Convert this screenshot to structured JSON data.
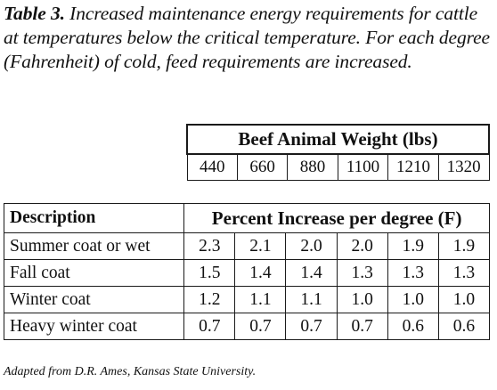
{
  "caption": {
    "lead": "Table 3.",
    "text": " Increased maintenance energy requirements for cattle at temperatures below the critical temperature. For each degree (Fahrenheit) of cold, feed requirements are increased."
  },
  "weight_table": {
    "title": "Beef Animal Weight (lbs)",
    "weights": [
      "440",
      "660",
      "880",
      "1100",
      "1210",
      "1320"
    ]
  },
  "main_table": {
    "desc_header": "Description",
    "pct_header": "Percent Increase per degree (F)",
    "rows": [
      {
        "label": "Summer coat or wet",
        "values": [
          "2.3",
          "2.1",
          "2.0",
          "2.0",
          "1.9",
          "1.9"
        ]
      },
      {
        "label": "Fall coat",
        "values": [
          "1.5",
          "1.4",
          "1.4",
          "1.3",
          "1.3",
          "1.3"
        ]
      },
      {
        "label": "Winter coat",
        "values": [
          "1.2",
          "1.1",
          "1.1",
          "1.0",
          "1.0",
          "1.0"
        ]
      },
      {
        "label": "Heavy winter coat",
        "values": [
          "0.7",
          "0.7",
          "0.7",
          "0.7",
          "0.6",
          "0.6"
        ]
      }
    ]
  },
  "source": "Adapted from D.R. Ames, Kansas State University."
}
